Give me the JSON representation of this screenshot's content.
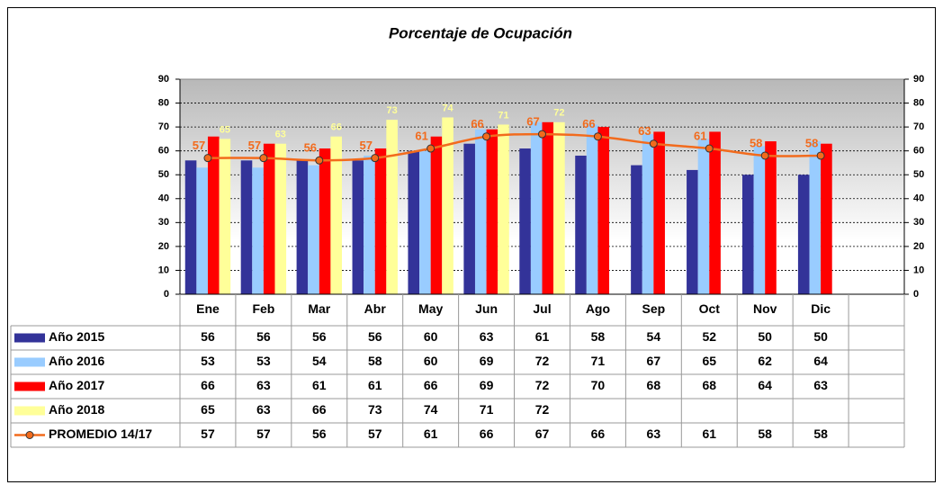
{
  "chart_data": {
    "type": "bar",
    "title": "Porcentaje de Ocupación",
    "categories": [
      "Ene",
      "Feb",
      "Mar",
      "Abr",
      "May",
      "Jun",
      "Jul",
      "Ago",
      "Sep",
      "Oct",
      "Nov",
      "Dic",
      null
    ],
    "series": [
      {
        "name": "Año 2015",
        "color": "#333399",
        "values": [
          56,
          56,
          56,
          56,
          60,
          63,
          61,
          58,
          54,
          52,
          50,
          50,
          null
        ]
      },
      {
        "name": "Año 2016",
        "color": "#99ccff",
        "values": [
          53,
          53,
          54,
          58,
          60,
          69,
          72,
          71,
          67,
          65,
          62,
          64,
          null
        ]
      },
      {
        "name": "Año 2017",
        "color": "#ff0000",
        "values": [
          66,
          63,
          61,
          61,
          66,
          69,
          72,
          70,
          68,
          68,
          64,
          63,
          null
        ]
      },
      {
        "name": "Año 2018",
        "color": "#ffff99",
        "values": [
          65,
          63,
          66,
          73,
          74,
          71,
          72,
          null,
          null,
          null,
          null,
          null,
          null
        ],
        "show_labels": true
      },
      {
        "name": "PROMEDIO 14/17",
        "type": "line",
        "color": "#f26b1d",
        "values": [
          57,
          57,
          56,
          57,
          61,
          66,
          67,
          66,
          63,
          61,
          58,
          58,
          null
        ],
        "show_labels": true
      }
    ],
    "ylim": [
      0,
      90
    ],
    "yticks": [
      0,
      10,
      20,
      30,
      40,
      50,
      60,
      70,
      80,
      90
    ],
    "y2lim": [
      0,
      90
    ],
    "y2ticks": [
      0,
      10,
      20,
      30,
      40,
      50,
      60,
      70,
      80,
      90
    ],
    "grid": true,
    "data_table": true
  }
}
